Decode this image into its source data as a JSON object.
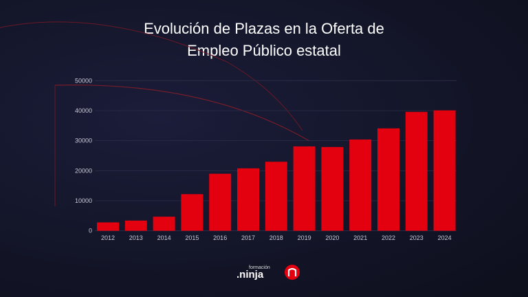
{
  "title_line1": "Evolución de Plazas en la Oferta de",
  "title_line2": "Empleo Público estatal",
  "chart_data": {
    "type": "bar",
    "title": "Evolución de Plazas en la Oferta de Empleo Público estatal",
    "xlabel": "",
    "ylabel": "",
    "categories": [
      "2012",
      "2013",
      "2014",
      "2015",
      "2016",
      "2017",
      "2018",
      "2019",
      "2020",
      "2021",
      "2022",
      "2023",
      "2024"
    ],
    "values": [
      2800,
      3400,
      4700,
      12200,
      19000,
      20800,
      23000,
      28100,
      27900,
      30400,
      34100,
      39600,
      40100
    ],
    "ylim": [
      0,
      50000
    ],
    "yticks": [
      "0",
      "10000",
      "20000",
      "30000",
      "40000",
      "50000"
    ],
    "grid": true,
    "bar_color": "#e3000f"
  },
  "logo": {
    "top": "formación",
    "main": "ninja"
  }
}
